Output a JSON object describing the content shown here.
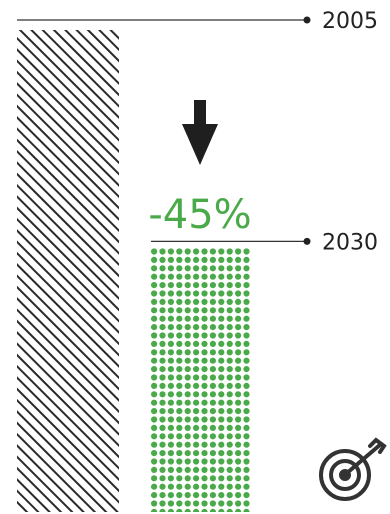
{
  "chart_data": {
    "type": "bar",
    "categories": [
      "2005",
      "2030"
    ],
    "values": [
      100,
      55
    ],
    "change_label": "-45%",
    "title": "",
    "xlabel": "",
    "ylabel": "",
    "ylim": [
      0,
      100
    ],
    "grid": false,
    "legend": "none"
  },
  "colors": {
    "baseline_bar": "#2a2a2a",
    "target_bar": "#4aaa4a",
    "change_label": "#4aaa4a",
    "arrow": "#1f1f1f",
    "line": "#333333"
  },
  "icons": {
    "down_arrow": "down-arrow-icon",
    "target": "target-icon"
  }
}
